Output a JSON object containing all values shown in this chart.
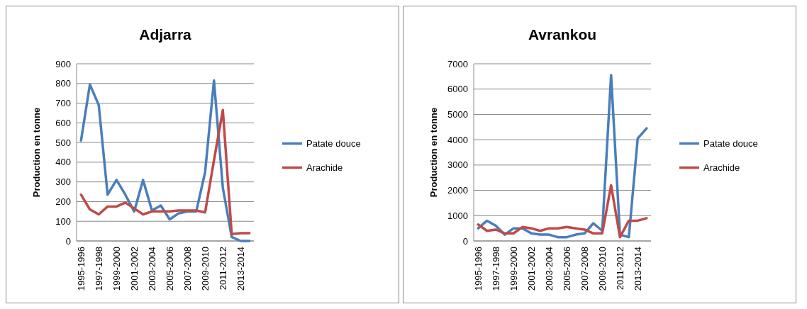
{
  "chart_data": [
    {
      "type": "line",
      "title": "Adjarra",
      "ylabel": "Production en tonne",
      "categories": [
        "1995-1996",
        null,
        "1997-1998",
        null,
        "1999-2000",
        null,
        "2001-2002",
        null,
        "2003-2004",
        null,
        "2005-2006",
        null,
        "2007-2008",
        null,
        "2009-2010",
        null,
        "2011-2012",
        null,
        "2013-2014",
        null
      ],
      "ylim": [
        0,
        900
      ],
      "yticks": [
        0,
        100,
        200,
        300,
        400,
        500,
        600,
        700,
        800,
        900
      ],
      "grid": "y",
      "legend": "right",
      "series": [
        {
          "name": "Patate douce",
          "color": "#4a7ebb",
          "values": [
            510,
            795,
            690,
            235,
            310,
            235,
            150,
            310,
            155,
            180,
            110,
            140,
            150,
            150,
            350,
            815,
            270,
            20,
            0,
            0
          ]
        },
        {
          "name": "Arachide",
          "color": "#be4b48",
          "values": [
            235,
            160,
            135,
            175,
            175,
            195,
            165,
            135,
            150,
            150,
            150,
            155,
            155,
            155,
            145,
            410,
            665,
            35,
            40,
            40
          ]
        }
      ]
    },
    {
      "type": "line",
      "title": "Avrankou",
      "ylabel": "Production en tonne",
      "categories": [
        "1995-1996",
        null,
        "1997-1998",
        null,
        "1999-2000",
        null,
        "2001-2002",
        null,
        "2003-2004",
        null,
        "2005-2006",
        null,
        "2007-2008",
        null,
        "2009-2010",
        null,
        "2011-2012",
        null,
        "2013-2014",
        null
      ],
      "ylim": [
        0,
        7000
      ],
      "yticks": [
        0,
        1000,
        2000,
        3000,
        4000,
        5000,
        6000,
        7000
      ],
      "grid": "y",
      "legend": "right",
      "series": [
        {
          "name": "Patate douce",
          "color": "#4a7ebb",
          "values": [
            500,
            800,
            600,
            250,
            500,
            500,
            300,
            250,
            250,
            150,
            150,
            250,
            300,
            700,
            400,
            6550,
            250,
            150,
            4050,
            4450
          ]
        },
        {
          "name": "Arachide",
          "color": "#be4b48",
          "values": [
            650,
            400,
            450,
            300,
            300,
            550,
            500,
            400,
            500,
            500,
            550,
            500,
            450,
            300,
            300,
            2200,
            150,
            800,
            800,
            900
          ]
        }
      ]
    }
  ]
}
